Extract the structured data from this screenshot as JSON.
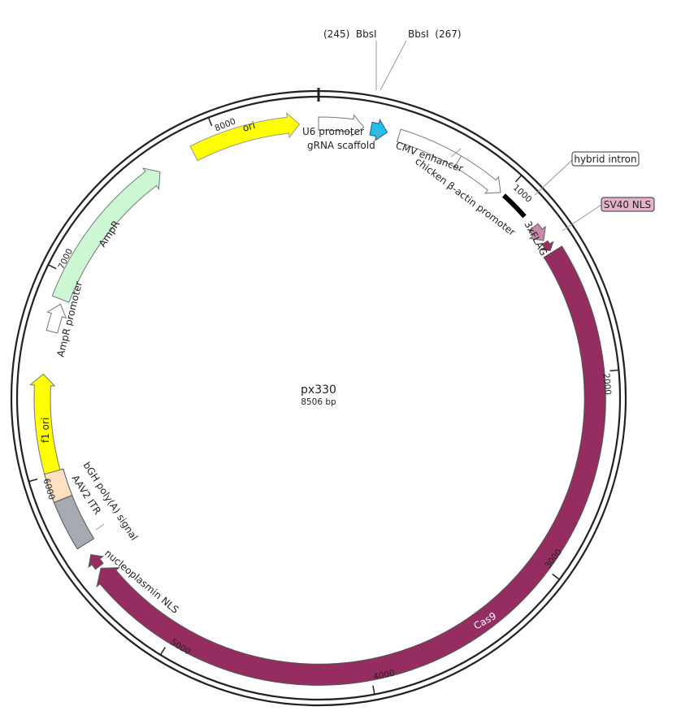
{
  "map": {
    "name": "px330",
    "size": {
      "value": 8506,
      "label": "8506 bp"
    },
    "ticks": [
      1000,
      2000,
      3000,
      4000,
      5000,
      6000,
      7000,
      8000
    ],
    "sites": [
      "(245)  BbsI",
      "BbsI  (267)"
    ],
    "features": [
      {
        "label": "ori"
      },
      {
        "label": "U6 promoter"
      },
      {
        "label": "gRNA scaffold"
      },
      {
        "label": "CMV enhancer"
      },
      {
        "label": "chicken β-actin promoter"
      },
      {
        "label": "hybrid intron"
      },
      {
        "label": "3xFLAG"
      },
      {
        "label": "SV40 NLS"
      },
      {
        "label": "Cas9"
      },
      {
        "label": "nucleoplasmin NLS"
      },
      {
        "label": "bGH poly(A) signal"
      },
      {
        "label": "AAV2 ITR"
      },
      {
        "label": "f1 ori"
      },
      {
        "label": "AmpR promoter"
      },
      {
        "label": "AmpR"
      }
    ]
  }
}
